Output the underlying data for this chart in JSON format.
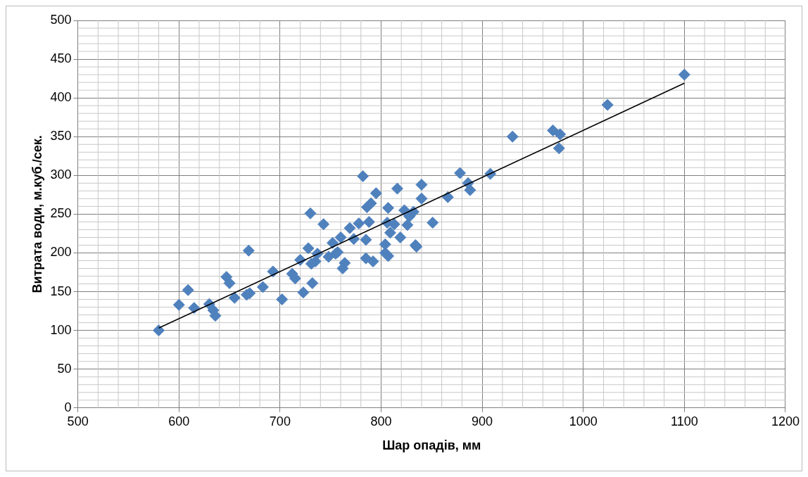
{
  "chart_data": {
    "type": "scatter",
    "xlabel": "Шар опадів, мм",
    "ylabel": "Витрата води, м.куб./сек.",
    "xlim": [
      500,
      1200
    ],
    "xticks": [
      500,
      600,
      700,
      800,
      900,
      1000,
      1100,
      1200
    ],
    "ylim": [
      0,
      500
    ],
    "yticks": [
      0,
      50,
      100,
      150,
      200,
      250,
      300,
      350,
      400,
      450,
      500
    ],
    "grid": true,
    "legend": false,
    "marker": "diamond",
    "series": [
      {
        "color": "#4f81bd",
        "x": [
          580,
          600,
          609,
          615,
          630,
          634,
          636,
          647,
          650,
          655,
          669,
          667,
          670,
          683,
          693,
          702,
          712,
          715,
          720,
          723,
          728,
          730,
          731,
          732,
          735,
          737,
          743,
          748,
          752,
          755,
          757,
          760,
          762,
          764,
          769,
          773,
          778,
          782,
          785,
          785,
          786,
          788,
          790,
          792,
          795,
          804,
          806,
          807,
          807,
          804,
          809,
          813,
          816,
          819,
          823,
          826,
          828,
          832,
          834,
          835,
          840,
          840,
          851,
          866,
          878,
          886,
          888,
          908,
          930,
          970,
          977,
          976,
          1024,
          1100
        ],
        "values": [
          100,
          133,
          152,
          129,
          134,
          126,
          119,
          169,
          161,
          142,
          203,
          146,
          148,
          156,
          176,
          140,
          173,
          167,
          191,
          149,
          206,
          251,
          186,
          161,
          189,
          199,
          237,
          195,
          213,
          199,
          201,
          220,
          180,
          187,
          232,
          218,
          238,
          299,
          193,
          217,
          259,
          240,
          264,
          189,
          277,
          200,
          239,
          258,
          196,
          211,
          226,
          237,
          283,
          220,
          255,
          236,
          247,
          253,
          210,
          208,
          288,
          270,
          239,
          272,
          303,
          290,
          281,
          302,
          350,
          358,
          353,
          335,
          391,
          430
        ]
      },
      {
        "type": "line",
        "color": "#000000",
        "marker": "none",
        "x": [
          580,
          1100
        ],
        "values": [
          103,
          419
        ]
      }
    ]
  }
}
